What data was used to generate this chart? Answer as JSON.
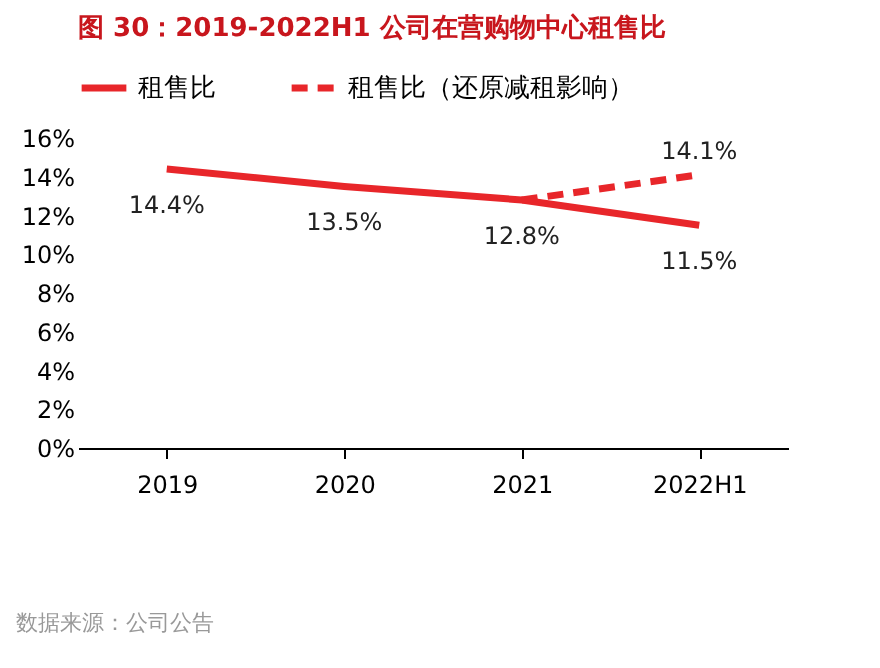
{
  "chart_data": {
    "type": "line",
    "title": "图 30：2019-2022H1 公司在营购物中心租售比",
    "categories": [
      "2019",
      "2020",
      "2021",
      "2022H1"
    ],
    "series": [
      {
        "name": "租售比",
        "color": "#e8262a",
        "line_style": "solid",
        "values": [
          14.4,
          13.5,
          12.8,
          11.5
        ],
        "value_labels": [
          "14.4%",
          "13.5%",
          "12.8%",
          "11.5%"
        ]
      },
      {
        "name": "租售比（还原减租影响）",
        "color": "#e8262a",
        "line_style": "dashed",
        "values": [
          null,
          null,
          12.8,
          14.1
        ],
        "value_labels": [
          null,
          null,
          null,
          "14.1%"
        ]
      }
    ],
    "ylim": [
      0,
      16
    ],
    "yticks": [
      {
        "value": 0,
        "label": "0%"
      },
      {
        "value": 2,
        "label": "2%"
      },
      {
        "value": 4,
        "label": "4%"
      },
      {
        "value": 6,
        "label": "6%"
      },
      {
        "value": 8,
        "label": "8%"
      },
      {
        "value": 10,
        "label": "10%"
      },
      {
        "value": 12,
        "label": "12%"
      },
      {
        "value": 14,
        "label": "14%"
      },
      {
        "value": 16,
        "label": "16%"
      }
    ],
    "grid": false,
    "legend": "top",
    "marker": "none",
    "annotations": [
      "数据来源：公司公告"
    ]
  }
}
